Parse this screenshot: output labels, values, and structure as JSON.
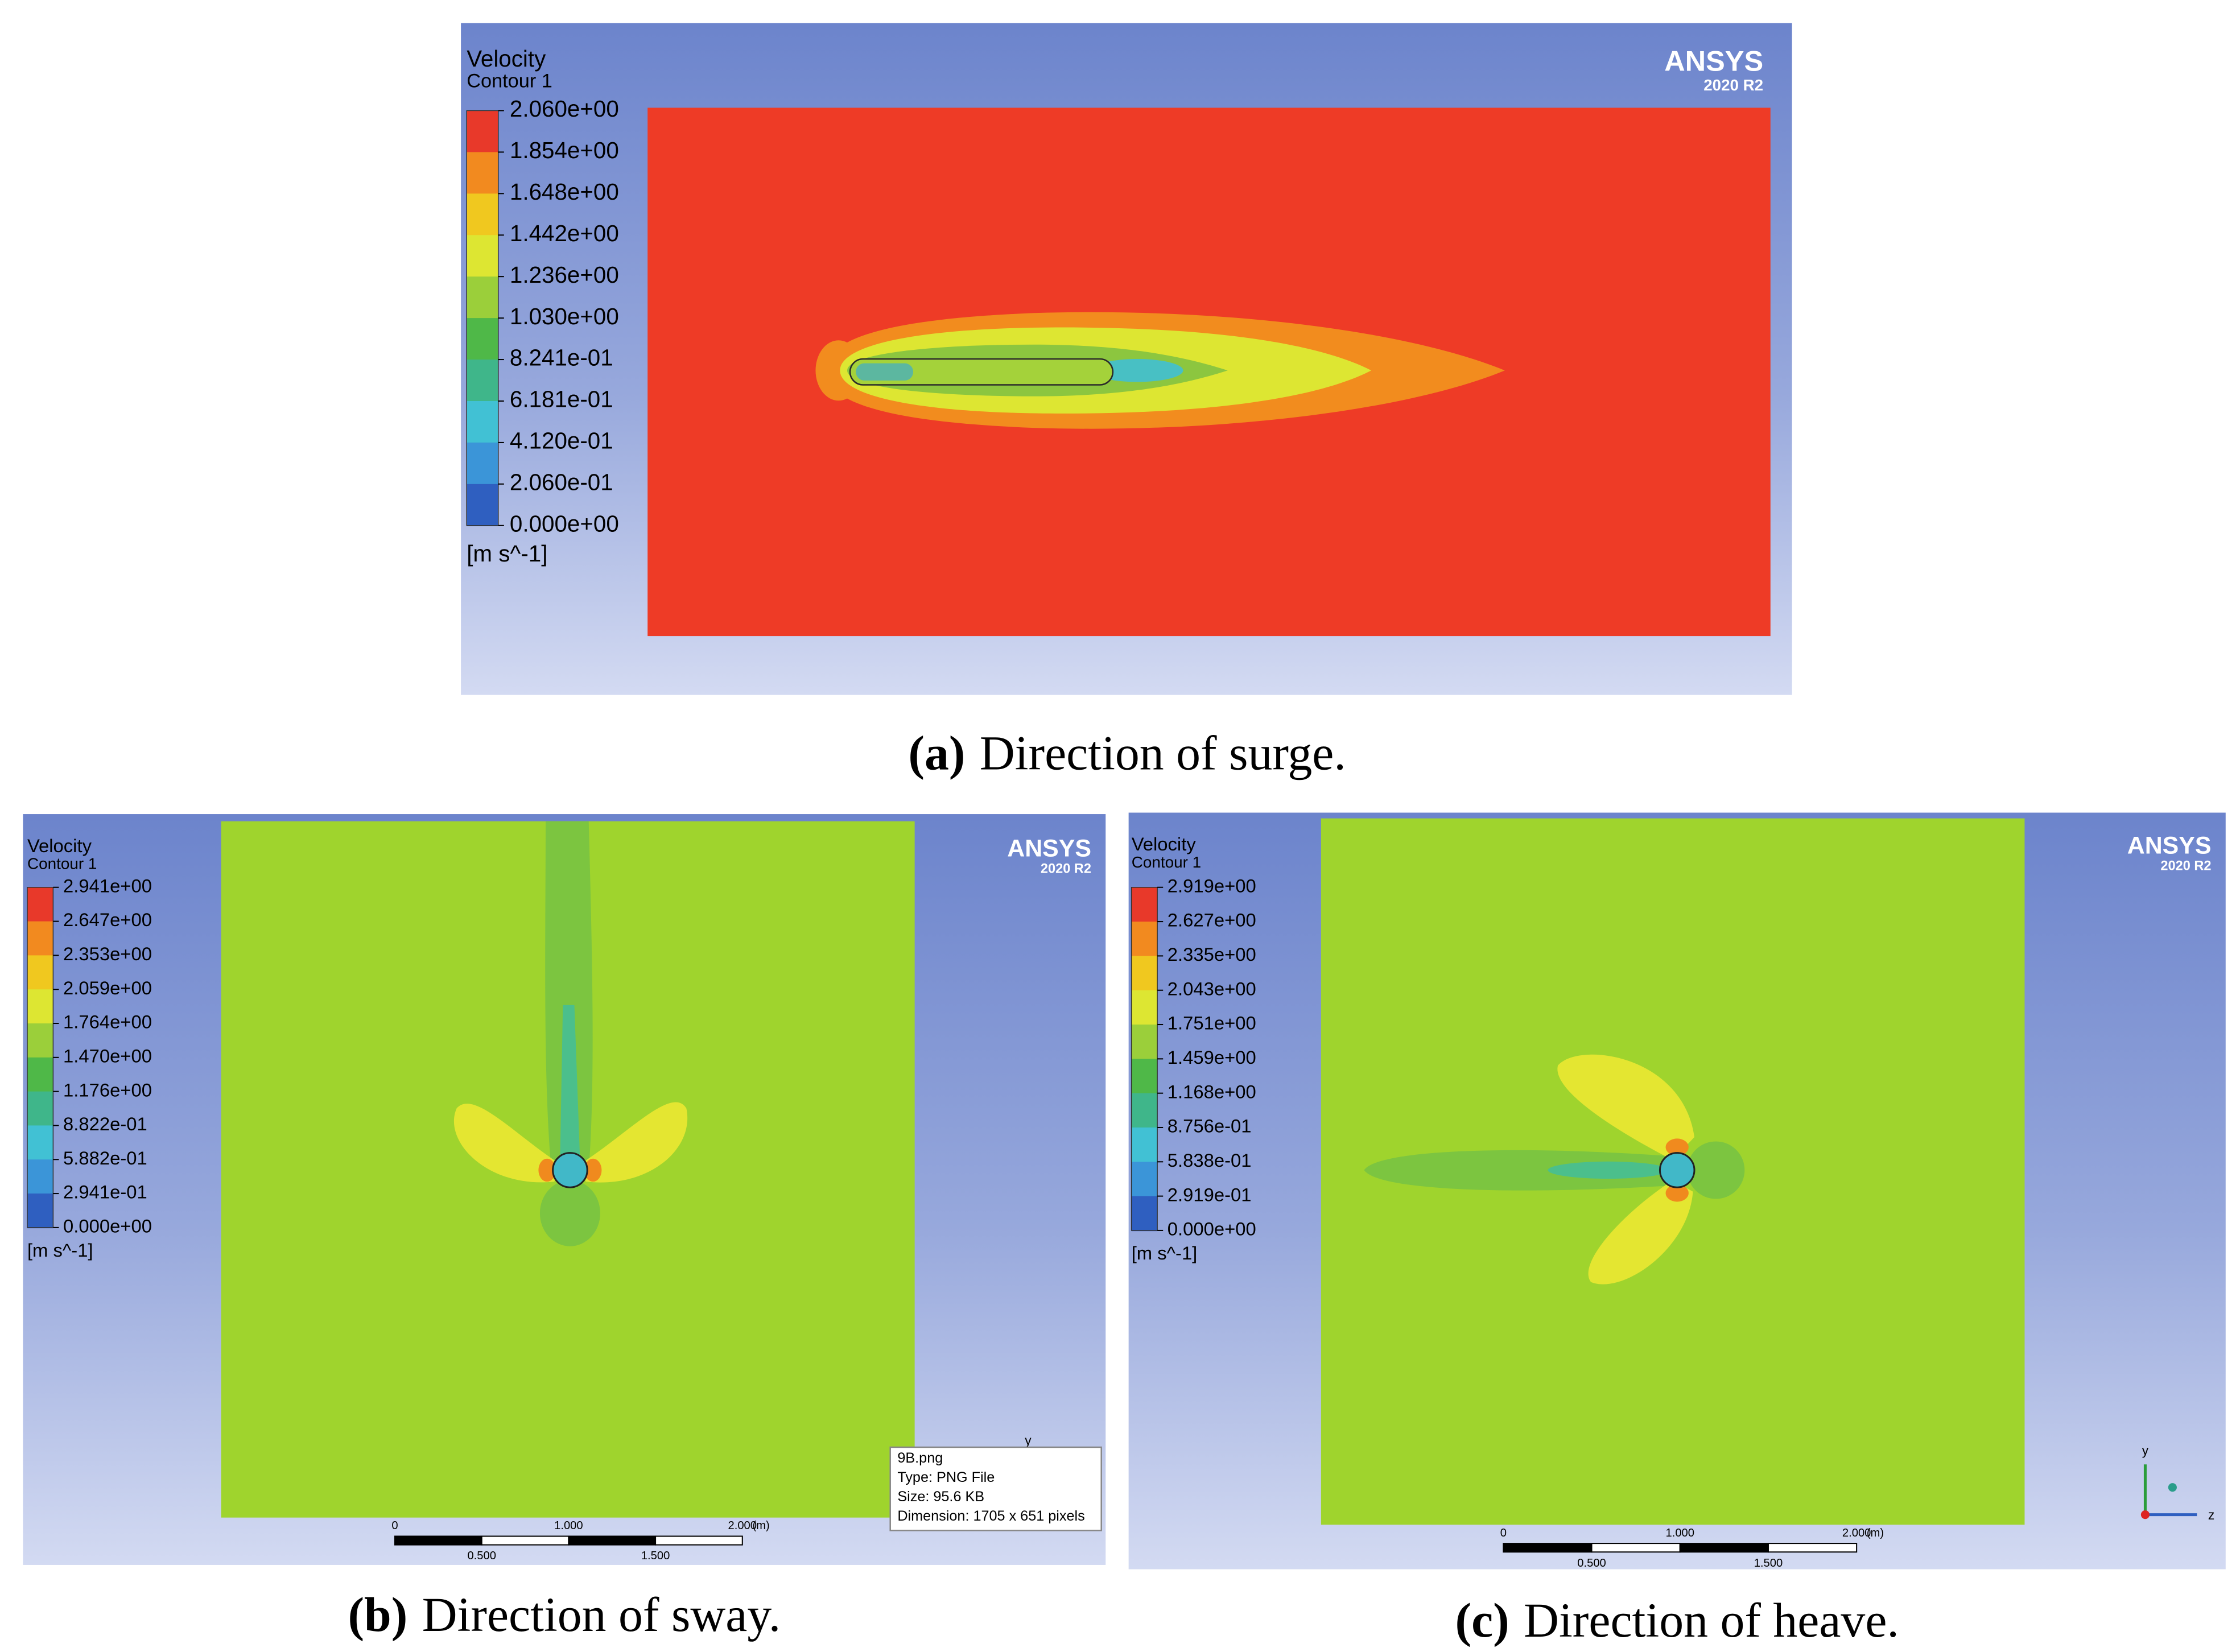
{
  "panels": [
    {
      "legend": {
        "title": "Velocity",
        "subtitle": "Contour 1",
        "levels": [
          "2.060e+00",
          "1.854e+00",
          "1.648e+00",
          "1.442e+00",
          "1.236e+00",
          "1.030e+00",
          "8.241e-01",
          "6.181e-01",
          "4.120e-01",
          "2.060e-01",
          "0.000e+00"
        ],
        "unit": "[m s^-1]"
      },
      "logo": {
        "name": "ANSYS",
        "version": "2020 R2"
      },
      "caption": {
        "label": "(a)",
        "text": "Direction of surge."
      }
    },
    {
      "legend": {
        "title": "Velocity",
        "subtitle": "Contour 1",
        "levels": [
          "2.941e+00",
          "2.647e+00",
          "2.353e+00",
          "2.059e+00",
          "1.764e+00",
          "1.470e+00",
          "1.176e+00",
          "8.822e-01",
          "5.882e-01",
          "2.941e-01",
          "0.000e+00"
        ],
        "unit": "[m s^-1]"
      },
      "logo": {
        "name": "ANSYS",
        "version": "2020 R2"
      },
      "scale_bar": {
        "top_labels": [
          "0",
          "1.000",
          "2.000"
        ],
        "unit": "(m)",
        "bottom_labels": [
          "0.500",
          "1.500"
        ]
      },
      "triad": [
        "y"
      ],
      "tooltip": [
        "9B.png",
        "Type: PNG File",
        "Size: 95.6 KB",
        "Dimension: 1705 x 651 pixels"
      ],
      "caption": {
        "label": "(b)",
        "text": "Direction of sway."
      }
    },
    {
      "legend": {
        "title": "Velocity",
        "subtitle": "Contour 1",
        "levels": [
          "2.919e+00",
          "2.627e+00",
          "2.335e+00",
          "2.043e+00",
          "1.751e+00",
          "1.459e+00",
          "1.168e+00",
          "8.756e-01",
          "5.838e-01",
          "2.919e-01",
          "0.000e+00"
        ],
        "unit": "[m s^-1]"
      },
      "logo": {
        "name": "ANSYS",
        "version": "2020 R2"
      },
      "scale_bar": {
        "top_labels": [
          "0",
          "1.000",
          "2.000"
        ],
        "unit": "(m)",
        "bottom_labels": [
          "0.500",
          "1.500"
        ]
      },
      "triad": [
        "y",
        "z"
      ],
      "caption": {
        "label": "(c)",
        "text": "Direction of heave."
      }
    }
  ]
}
